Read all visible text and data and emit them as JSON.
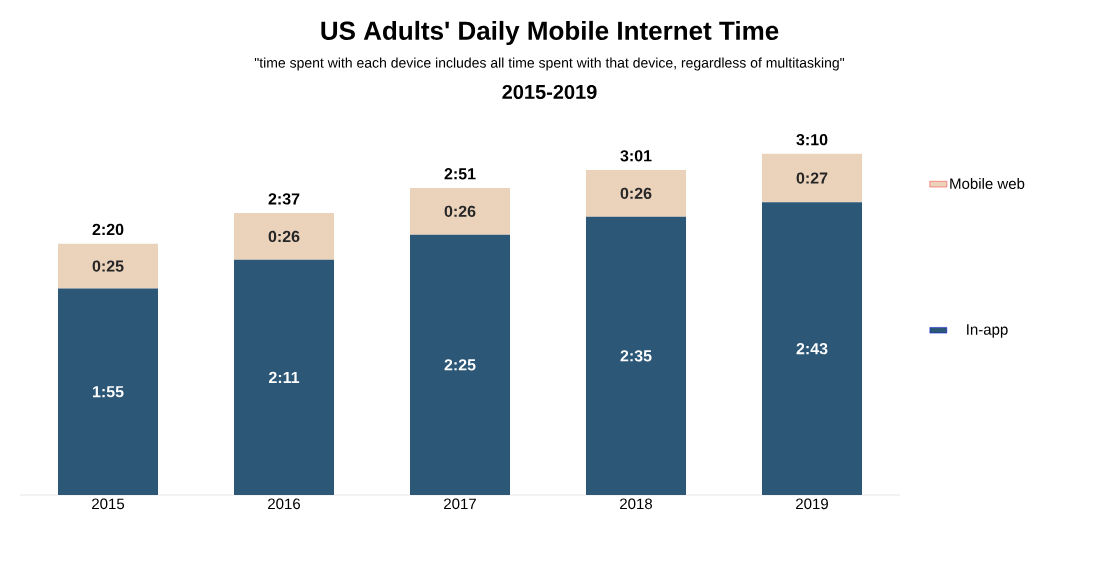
{
  "chart_data": {
    "type": "bar",
    "title": "US Adults' Daily Mobile Internet Time",
    "subtitle": "\"time spent with each device includes all time spent with that device, regardless of multitasking\"",
    "annotations": [
      "2015-2019"
    ],
    "categories": [
      "2015",
      "2016",
      "2017",
      "2018",
      "2019"
    ],
    "stacked": true,
    "legend": "right",
    "series": [
      {
        "name": "In-app",
        "color": "#2c5777",
        "values": [
          115,
          131,
          145,
          155,
          163
        ],
        "value_labels": [
          "1:55",
          "2:11",
          "2:25",
          "2:35",
          "2:43"
        ]
      },
      {
        "name": "Mobile web",
        "color": "#ead2bb",
        "values": [
          25,
          26,
          26,
          26,
          27
        ],
        "value_labels": [
          "0:25",
          "0:26",
          "0:26",
          "0:26",
          "0:27"
        ]
      }
    ],
    "totals": [
      "2:20",
      "2:37",
      "2:51",
      "3:01",
      "3:10"
    ]
  }
}
